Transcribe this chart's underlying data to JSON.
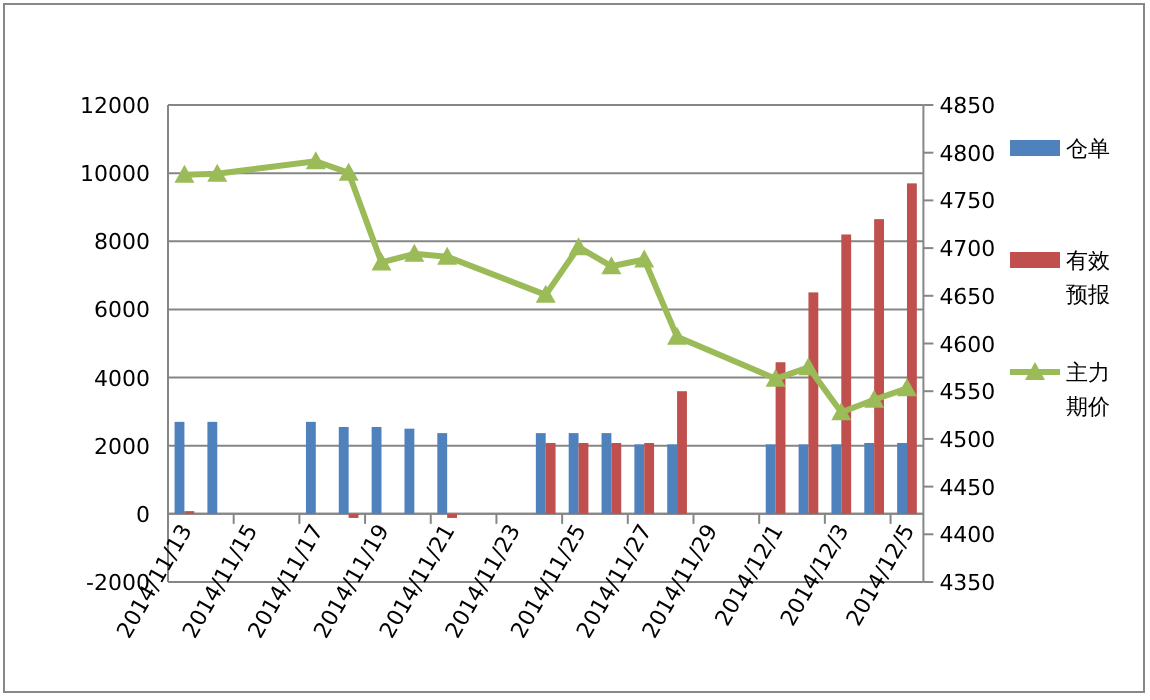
{
  "chart_data": {
    "type": "bar",
    "categories": [
      "2014/11/13",
      null,
      "2014/11/15",
      null,
      "2014/11/17",
      null,
      "2014/11/19",
      null,
      "2014/11/21",
      null,
      "2014/11/23",
      null,
      "2014/11/25",
      null,
      "2014/11/27",
      null,
      "2014/11/29",
      null,
      "2014/12/1",
      null,
      "2014/12/3",
      null,
      "2014/12/5"
    ],
    "series": [
      {
        "name": "仓单",
        "color": "#4f81bd",
        "values": [
          2700,
          2700,
          null,
          null,
          2700,
          2550,
          2550,
          2500,
          2370,
          null,
          null,
          2370,
          2370,
          2370,
          2040,
          2040,
          null,
          null,
          2040,
          2040,
          2040,
          2080,
          2080
        ]
      },
      {
        "name": "有效预报",
        "color": "#c0504d",
        "values": [
          80,
          null,
          null,
          null,
          null,
          -120,
          null,
          null,
          -120,
          null,
          null,
          2080,
          2080,
          2080,
          2080,
          3600,
          null,
          null,
          4450,
          6500,
          8200,
          8650,
          9700
        ]
      },
      {
        "name": "主力期价",
        "color": "#9bbb59",
        "type": "line",
        "axis": "y2",
        "marker": "triangle",
        "values": [
          4777,
          4778,
          null,
          null,
          4791,
          4779,
          4685,
          4694,
          4691,
          null,
          null,
          4651,
          4701,
          4681,
          4688,
          4607,
          null,
          null,
          4563,
          4575,
          4528,
          4541,
          4553
        ]
      }
    ],
    "ylim": [
      -2000,
      12000
    ],
    "yticks": [
      -2000,
      0,
      2000,
      4000,
      6000,
      8000,
      10000,
      12000
    ],
    "y2lim": [
      4350,
      4850
    ],
    "y2ticks": [
      4350,
      4400,
      4450,
      4500,
      4550,
      4600,
      4650,
      4700,
      4750,
      4800,
      4850
    ],
    "grid": "y",
    "legend": "right"
  }
}
